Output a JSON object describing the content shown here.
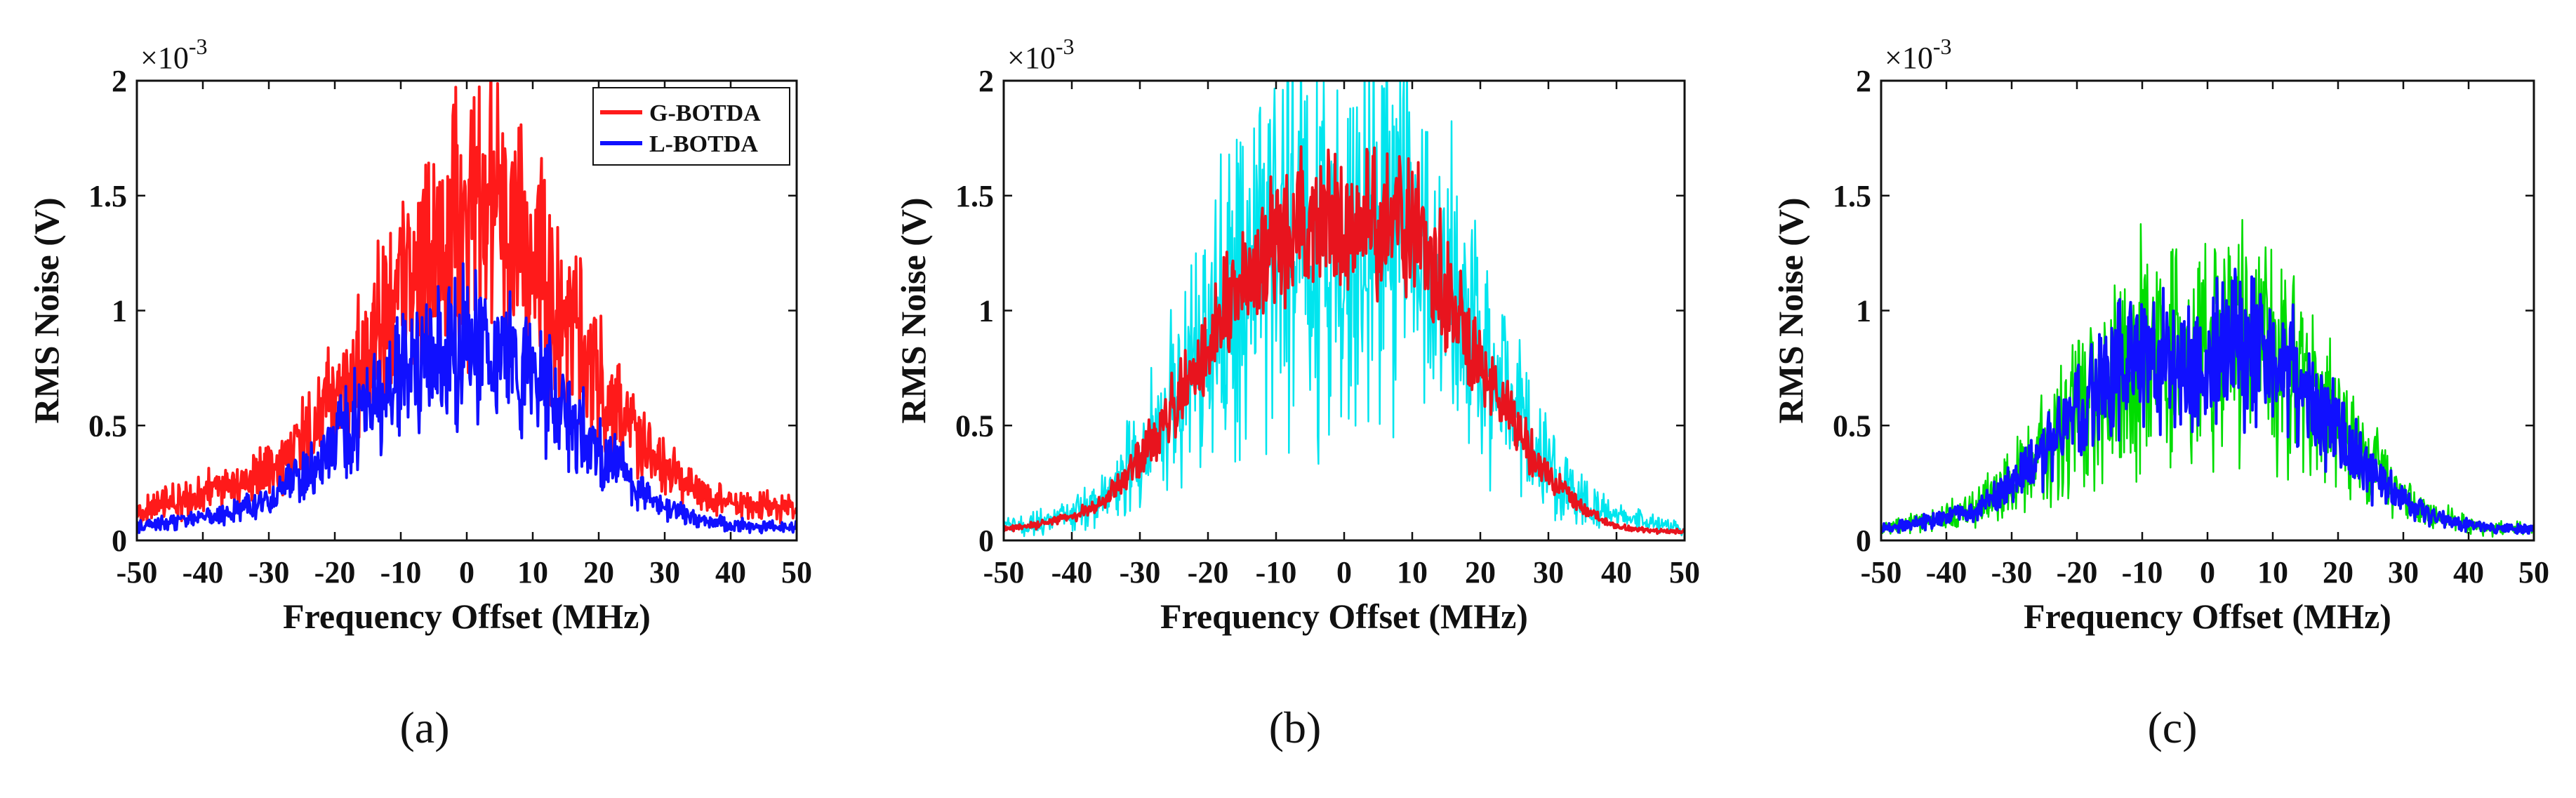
{
  "figure": {
    "captions": [
      "(a)",
      "(b)",
      "(c)"
    ]
  },
  "chart_data": [
    {
      "type": "line",
      "panel": "(a)",
      "xlabel": "Frequency Offset (MHz)",
      "ylabel": "RMS Noise (V)",
      "y_exponent": "×10",
      "y_exponent_power": "-3",
      "xlim": [
        -50,
        50
      ],
      "ylim": [
        0,
        2
      ],
      "xticks": [
        -50,
        -40,
        -30,
        -20,
        -10,
        0,
        10,
        20,
        30,
        40,
        50
      ],
      "yticks": [
        0,
        0.5,
        1,
        1.5,
        2
      ],
      "ytick_labels": [
        "0",
        "0.5",
        "1",
        "1.5",
        "2"
      ],
      "legend": {
        "placement": "top-right",
        "entries": [
          "G-BOTDA",
          "L-BOTDA"
        ]
      },
      "series": [
        {
          "name": "G-BOTDA",
          "color": "#ff1a1a",
          "noise": 0.55,
          "x": [
            -50,
            -45,
            -40,
            -35,
            -30,
            -25,
            -20,
            -15,
            -10,
            -5,
            0,
            3,
            5,
            10,
            15,
            20,
            25,
            30,
            35,
            40,
            45,
            50
          ],
          "y": [
            0.13,
            0.16,
            0.2,
            0.24,
            0.32,
            0.42,
            0.6,
            0.8,
            1.05,
            1.25,
            1.4,
            1.45,
            1.35,
            1.2,
            0.95,
            0.72,
            0.48,
            0.3,
            0.2,
            0.16,
            0.15,
            0.14
          ]
        },
        {
          "name": "L-BOTDA",
          "color": "#1010ff",
          "noise": 0.5,
          "x": [
            -50,
            -45,
            -40,
            -35,
            -30,
            -25,
            -20,
            -15,
            -10,
            -5,
            0,
            3,
            5,
            10,
            15,
            20,
            25,
            30,
            35,
            40,
            45,
            50
          ],
          "y": [
            0.06,
            0.08,
            0.1,
            0.13,
            0.18,
            0.28,
            0.42,
            0.58,
            0.72,
            0.8,
            0.82,
            0.85,
            0.8,
            0.72,
            0.56,
            0.4,
            0.26,
            0.14,
            0.09,
            0.07,
            0.06,
            0.06
          ]
        }
      ]
    },
    {
      "type": "line",
      "panel": "(b)",
      "xlabel": "Frequency Offset (MHz)",
      "ylabel": "RMS Noise (V)",
      "y_exponent": "×10",
      "y_exponent_power": "-3",
      "xlim": [
        -50,
        50
      ],
      "ylim": [
        0,
        2
      ],
      "xticks": [
        -50,
        -40,
        -30,
        -20,
        -10,
        0,
        10,
        20,
        30,
        40,
        50
      ],
      "yticks": [
        0,
        0.5,
        1,
        1.5,
        2
      ],
      "ytick_labels": [
        "0",
        "0.5",
        "1",
        "1.5",
        "2"
      ],
      "series": [
        {
          "name": "cyan",
          "color": "#00e5ee",
          "noise": 0.8,
          "x": [
            -50,
            -45,
            -40,
            -35,
            -30,
            -25,
            -20,
            -15,
            -10,
            -5,
            0,
            5,
            10,
            15,
            20,
            25,
            30,
            35,
            40,
            45,
            50
          ],
          "y": [
            0.06,
            0.08,
            0.12,
            0.2,
            0.38,
            0.62,
            0.9,
            1.15,
            1.35,
            1.4,
            1.3,
            1.4,
            1.3,
            1.1,
            0.85,
            0.55,
            0.32,
            0.18,
            0.1,
            0.07,
            0.05
          ]
        },
        {
          "name": "red",
          "color": "#e8141e",
          "noise": 0.3,
          "x": [
            -50,
            -45,
            -40,
            -35,
            -30,
            -25,
            -20,
            -15,
            -10,
            -5,
            0,
            5,
            10,
            15,
            20,
            25,
            30,
            35,
            40,
            45,
            50
          ],
          "y": [
            0.05,
            0.07,
            0.1,
            0.18,
            0.35,
            0.58,
            0.85,
            1.1,
            1.3,
            1.38,
            1.35,
            1.45,
            1.35,
            1.08,
            0.8,
            0.5,
            0.28,
            0.14,
            0.06,
            0.04,
            0.04
          ]
        }
      ]
    },
    {
      "type": "line",
      "panel": "(c)",
      "xlabel": "Frequency Offset (MHz)",
      "ylabel": "RMS Noise (V)",
      "y_exponent": "×10",
      "y_exponent_power": "-3",
      "xlim": [
        -50,
        50
      ],
      "ylim": [
        0,
        2
      ],
      "xticks": [
        -50,
        -40,
        -30,
        -20,
        -10,
        0,
        10,
        20,
        30,
        40,
        50
      ],
      "yticks": [
        0,
        0.5,
        1,
        1.5,
        2
      ],
      "ytick_labels": [
        "0",
        "0.5",
        "1",
        "1.5",
        "2"
      ],
      "series": [
        {
          "name": "green",
          "color": "#00dd00",
          "noise": 0.75,
          "x": [
            -50,
            -45,
            -40,
            -35,
            -30,
            -25,
            -20,
            -15,
            -10,
            -5,
            0,
            5,
            10,
            15,
            20,
            25,
            30,
            35,
            40,
            45,
            50
          ],
          "y": [
            0.05,
            0.07,
            0.1,
            0.15,
            0.25,
            0.4,
            0.58,
            0.75,
            0.85,
            0.82,
            0.8,
            0.85,
            0.82,
            0.68,
            0.5,
            0.32,
            0.18,
            0.1,
            0.07,
            0.05,
            0.05
          ]
        },
        {
          "name": "blue",
          "color": "#1010ff",
          "noise": 0.5,
          "x": [
            -50,
            -45,
            -40,
            -35,
            -30,
            -25,
            -20,
            -15,
            -10,
            -5,
            0,
            5,
            10,
            15,
            20,
            25,
            30,
            35,
            40,
            45,
            50
          ],
          "y": [
            0.05,
            0.07,
            0.1,
            0.14,
            0.24,
            0.38,
            0.55,
            0.72,
            0.82,
            0.8,
            0.78,
            0.84,
            0.8,
            0.66,
            0.48,
            0.3,
            0.17,
            0.1,
            0.07,
            0.05,
            0.05
          ]
        }
      ]
    }
  ]
}
